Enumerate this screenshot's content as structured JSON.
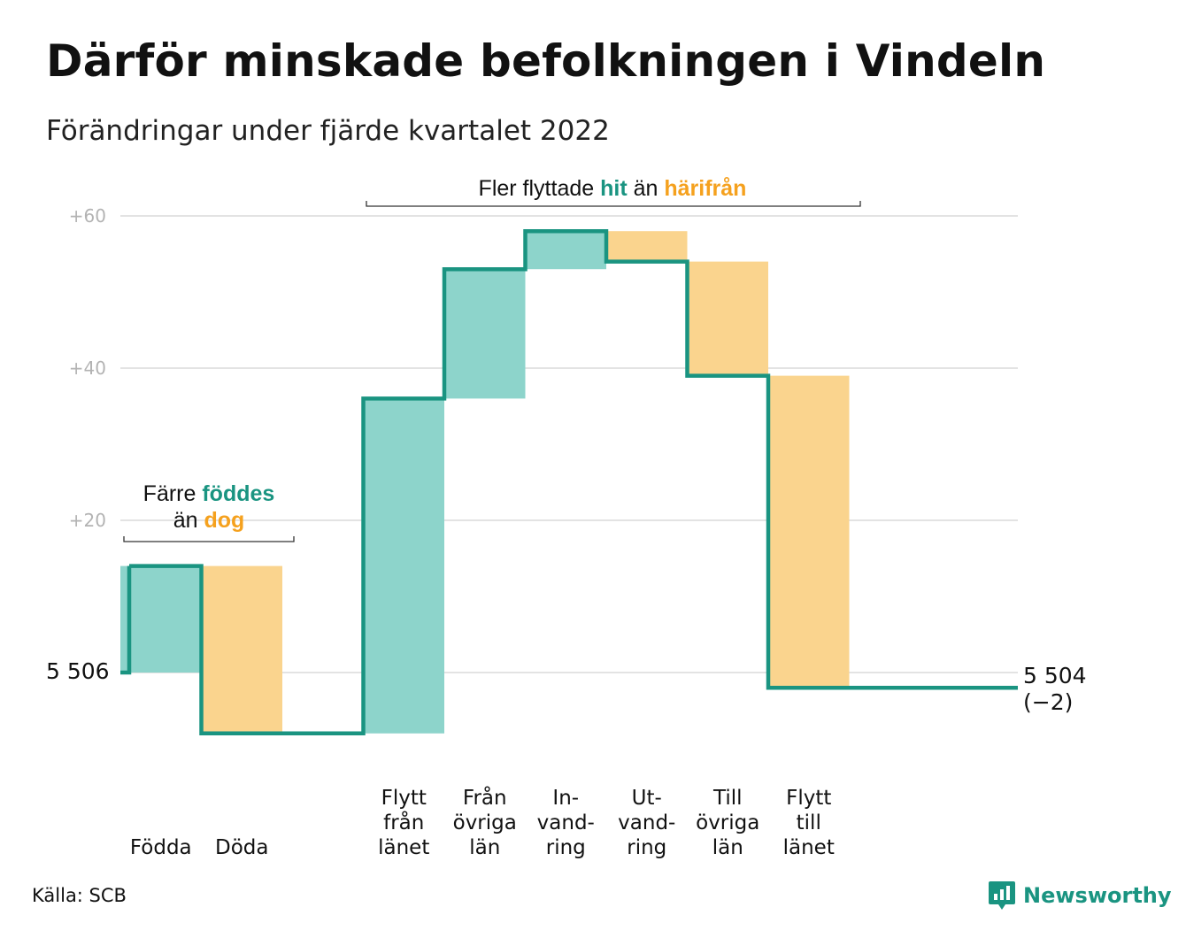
{
  "title": "Därför minskade befolkningen i Vindeln",
  "subtitle": "Förändringar under fjärde kvartalet 2022",
  "source": "Källa: SCB",
  "brand": "Newsworthy",
  "colors": {
    "line": "#1a9481",
    "increase": "#8dd4cb",
    "decrease": "#fad48e",
    "text_increase": "#1a9481",
    "text_decrease": "#f5a11e",
    "grid": "#e3e3e3"
  },
  "annotations": {
    "births": {
      "line1_prefix": "Färre ",
      "line1_word": "föddes",
      "line2_prefix": "än ",
      "line2_word": "dog"
    },
    "moves": {
      "prefix": "Fler flyttade ",
      "word_in": "hit",
      "middle": " än ",
      "word_out": "härifrån"
    }
  },
  "start_label": "5 506",
  "end_label": {
    "value": "5 504",
    "change": "(−2)"
  },
  "chart_data": {
    "type": "waterfall",
    "start_value": 5506,
    "end_value": 5504,
    "ylim": [
      -10,
      62
    ],
    "yticks": [
      {
        "value": 20,
        "label": "+20"
      },
      {
        "value": 40,
        "label": "+40"
      },
      {
        "value": 60,
        "label": "+60"
      }
    ],
    "grid": true,
    "steps": [
      {
        "label_lines": [
          "Födda"
        ],
        "change": 14,
        "kind": "increase"
      },
      {
        "label_lines": [
          "Döda"
        ],
        "change": -22,
        "kind": "decrease"
      },
      {
        "label_lines": [],
        "change": 0,
        "kind": "gap"
      },
      {
        "label_lines": [
          "Flytt",
          "från",
          "länet"
        ],
        "change": 44,
        "kind": "increase"
      },
      {
        "label_lines": [
          "Från",
          "övriga",
          "län"
        ],
        "change": 17,
        "kind": "increase"
      },
      {
        "label_lines": [
          "In-",
          "vand-",
          "ring"
        ],
        "change": 5,
        "kind": "increase"
      },
      {
        "label_lines": [
          "Ut-",
          "vand-",
          "ring"
        ],
        "change": -4,
        "kind": "decrease"
      },
      {
        "label_lines": [
          "Till",
          "övriga",
          "län"
        ],
        "change": -15,
        "kind": "decrease"
      },
      {
        "label_lines": [
          "Flytt",
          "till",
          "länet"
        ],
        "change": -41,
        "kind": "decrease"
      }
    ]
  }
}
